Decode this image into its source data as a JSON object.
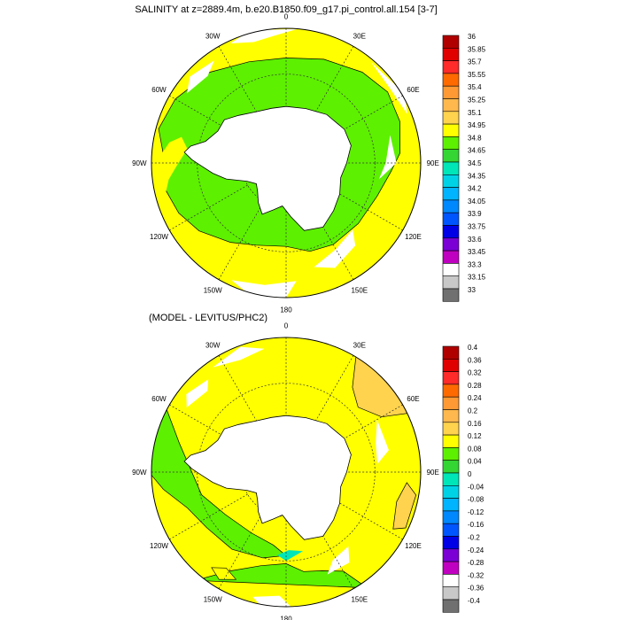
{
  "panels": [
    {
      "title": "SALINITY at z=2889.4m, b.e20.B1850.f09_g17.pi_control.all.154 [3-7]",
      "lon_labels": [
        "0",
        "30E",
        "60E",
        "90E",
        "120E",
        "150E",
        "180",
        "150W",
        "120W",
        "90W",
        "60W",
        "30W"
      ],
      "colorbar": {
        "labels": [
          "36",
          "35.85",
          "35.7",
          "35.55",
          "35.4",
          "35.25",
          "35.1",
          "34.95",
          "34.8",
          "34.65",
          "34.5",
          "34.35",
          "34.2",
          "34.05",
          "33.9",
          "33.75",
          "33.6",
          "33.45",
          "33.3",
          "33.15",
          "33"
        ],
        "colors": [
          "#b00000",
          "#e00000",
          "#ff2a2a",
          "#ff6a00",
          "#ff9933",
          "#ffb84d",
          "#ffd34d",
          "#ffff00",
          "#5df000",
          "#33d633",
          "#00e6b8",
          "#00d2e6",
          "#00b4ff",
          "#0088ff",
          "#0055ff",
          "#0000e6",
          "#7a00d6",
          "#c000c0",
          "#ffffff",
          "#c8c8c8",
          "#707070"
        ]
      },
      "chart_data": {
        "type": "heatmap",
        "projection": "south polar stereographic",
        "variable": "SALINITY",
        "depth": "2889.4m",
        "dominant_values": [
          {
            "region": "near Antarctica / Atlantic and Indian sectors (inner ring)",
            "value_range": [
              34.65,
              34.8
            ]
          },
          {
            "region": "outer ring and Pacific sector",
            "value_range": [
              34.8,
              34.95
            ]
          },
          {
            "region": "Weddell/Ross shelf and land",
            "value": "missing"
          }
        ]
      }
    },
    {
      "title": "(MODEL - LEVITUS/PHC2)",
      "lon_labels": [
        "0",
        "30E",
        "60E",
        "90E",
        "120E",
        "150E",
        "180",
        "150W",
        "120W",
        "90W",
        "60W",
        "30W"
      ],
      "colorbar": {
        "labels": [
          "0.4",
          "0.36",
          "0.32",
          "0.28",
          "0.24",
          "0.2",
          "0.16",
          "0.12",
          "0.08",
          "0.04",
          "0",
          "-0.04",
          "-0.08",
          "-0.12",
          "-0.16",
          "-0.2",
          "-0.24",
          "-0.28",
          "-0.32",
          "-0.36",
          "-0.4"
        ],
        "colors": [
          "#b00000",
          "#e00000",
          "#ff2a2a",
          "#ff6a00",
          "#ff9933",
          "#ffb84d",
          "#ffd34d",
          "#ffff00",
          "#5df000",
          "#33d633",
          "#00e6b8",
          "#00d2e6",
          "#00b4ff",
          "#0088ff",
          "#0055ff",
          "#0000e6",
          "#7a00d6",
          "#c000c0",
          "#ffffff",
          "#c8c8c8",
          "#707070"
        ]
      },
      "chart_data": {
        "type": "heatmap",
        "projection": "south polar stereographic",
        "variable": "salinity difference",
        "dominant_values": [
          {
            "region": "most of domain",
            "value_range": [
              0.08,
              0.12
            ]
          },
          {
            "region": "Pacific sector (90W-150W) and scattered patches",
            "value_range": [
              0.04,
              0.08
            ]
          },
          {
            "region": "Indian sector near 30E-60E and 90E-120E",
            "value_range": [
              0.12,
              0.16
            ]
          },
          {
            "region": "small patches near 150E-180 close to coast",
            "value_range": [
              0,
              0.04
            ]
          }
        ]
      }
    }
  ],
  "colors": {
    "background": "#ffffff",
    "land": "#ffffff",
    "missing": "#ffffff",
    "grid": "#444444"
  }
}
